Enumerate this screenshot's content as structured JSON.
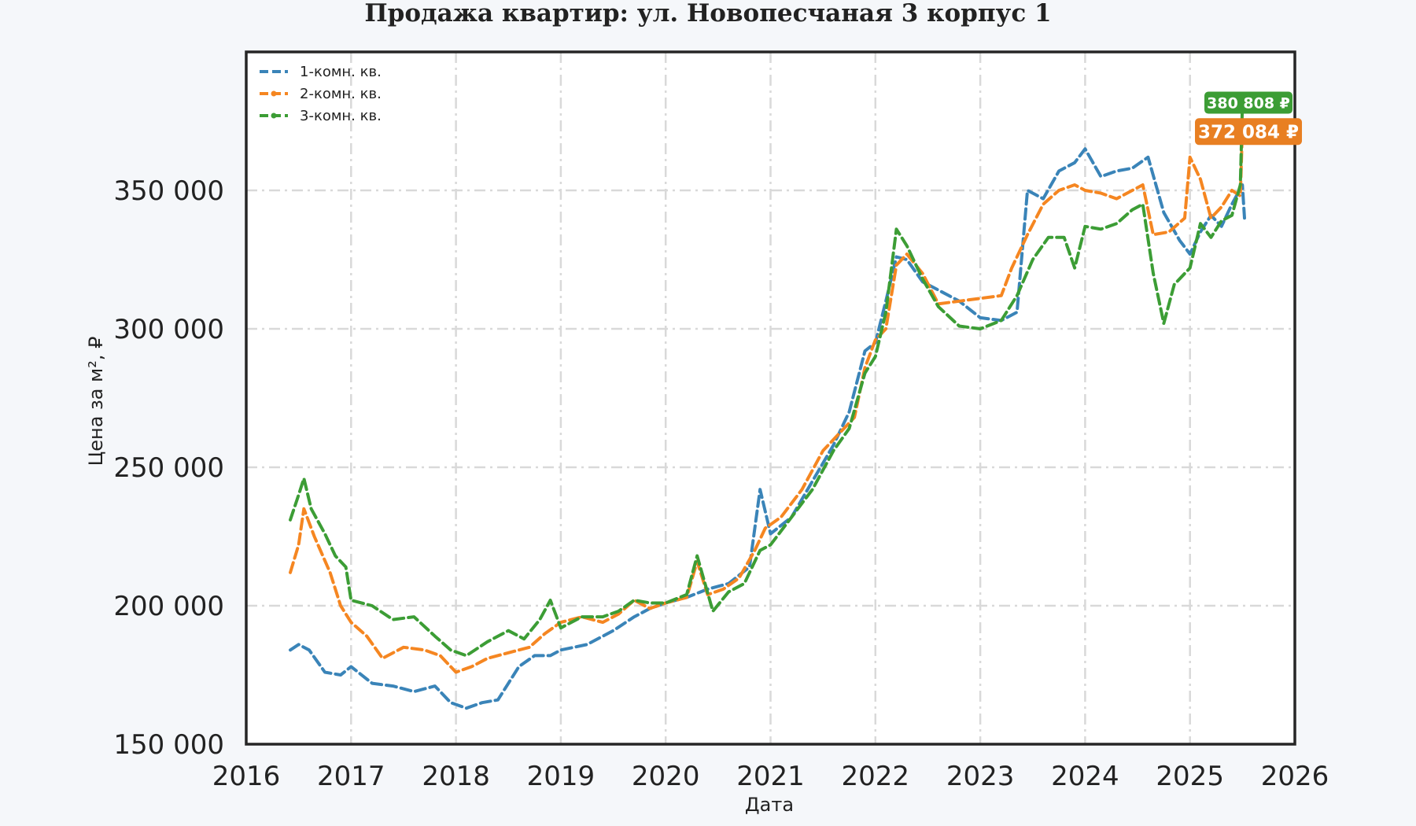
{
  "chart_data": {
    "type": "line",
    "title": "Продажа квартир: ул. Новопесчаная 3 корпус 1",
    "xlabel": "Дата",
    "ylabel": "Цена за м², ₽",
    "xlim": [
      2016,
      2026
    ],
    "ylim": [
      150000,
      400000
    ],
    "x_ticks": [
      2016,
      2017,
      2018,
      2019,
      2020,
      2021,
      2022,
      2023,
      2024,
      2025,
      2026
    ],
    "y_ticks": [
      150000,
      200000,
      250000,
      300000,
      350000
    ],
    "x_tick_labels": [
      "2016",
      "2017",
      "2018",
      "2019",
      "2020",
      "2021",
      "2022",
      "2023",
      "2024",
      "2025",
      "2026"
    ],
    "y_tick_labels": [
      "150 000",
      "200 000",
      "250 000",
      "300 000",
      "350 000"
    ],
    "grid": true,
    "legend_position": "top-left",
    "series": [
      {
        "name": "1-комн. кв.",
        "color": "#3a84b8",
        "x": [
          2016.42,
          2016.5,
          2016.6,
          2016.75,
          2016.9,
          2017.0,
          2017.2,
          2017.4,
          2017.6,
          2017.8,
          2017.95,
          2018.1,
          2018.25,
          2018.4,
          2018.5,
          2018.6,
          2018.75,
          2018.9,
          2019.0,
          2019.25,
          2019.5,
          2019.7,
          2019.85,
          2020.0,
          2020.2,
          2020.4,
          2020.6,
          2020.8,
          2020.9,
          2021.0,
          2021.2,
          2021.4,
          2021.6,
          2021.75,
          2021.9,
          2022.0,
          2022.1,
          2022.2,
          2022.3,
          2022.45,
          2022.6,
          2022.8,
          2023.0,
          2023.2,
          2023.35,
          2023.45,
          2023.6,
          2023.75,
          2023.9,
          2024.0,
          2024.15,
          2024.3,
          2024.45,
          2024.6,
          2024.75,
          2024.9,
          2025.0,
          2025.1,
          2025.2,
          2025.3,
          2025.4,
          2025.5,
          2025.52
        ],
        "values": [
          184000,
          186000,
          184000,
          176000,
          175000,
          178000,
          172000,
          171000,
          169000,
          171000,
          165000,
          163000,
          165000,
          166000,
          172000,
          178000,
          182000,
          182000,
          184000,
          186000,
          191000,
          196000,
          199000,
          201000,
          203000,
          206000,
          208000,
          214000,
          242000,
          226000,
          232000,
          245000,
          258000,
          270000,
          292000,
          295000,
          310000,
          326000,
          325000,
          317000,
          314000,
          310000,
          304000,
          303000,
          306000,
          350000,
          347000,
          357000,
          360000,
          365000,
          355000,
          357000,
          358000,
          362000,
          342000,
          332000,
          327000,
          335000,
          341000,
          337000,
          345000,
          352000,
          340000
        ]
      },
      {
        "name": "2-комн. кв.",
        "color": "#f58621",
        "x": [
          2016.42,
          2016.5,
          2016.55,
          2016.65,
          2016.8,
          2016.9,
          2017.0,
          2017.15,
          2017.3,
          2017.5,
          2017.7,
          2017.85,
          2018.0,
          2018.15,
          2018.3,
          2018.5,
          2018.7,
          2018.85,
          2019.0,
          2019.2,
          2019.4,
          2019.55,
          2019.7,
          2019.85,
          2020.0,
          2020.2,
          2020.3,
          2020.4,
          2020.55,
          2020.7,
          2020.85,
          2020.95,
          2021.1,
          2021.3,
          2021.5,
          2021.65,
          2021.8,
          2021.9,
          2022.0,
          2022.1,
          2022.2,
          2022.3,
          2022.45,
          2022.6,
          2022.8,
          2023.0,
          2023.2,
          2023.3,
          2023.45,
          2023.6,
          2023.75,
          2023.9,
          2024.0,
          2024.15,
          2024.3,
          2024.45,
          2024.55,
          2024.65,
          2024.8,
          2024.95,
          2025.0,
          2025.1,
          2025.2,
          2025.3,
          2025.4,
          2025.48,
          2025.5,
          2025.52
        ],
        "values": [
          212000,
          222000,
          235000,
          225000,
          212000,
          200000,
          194000,
          189000,
          181000,
          185000,
          184000,
          182000,
          176000,
          178000,
          181000,
          183000,
          185000,
          190000,
          194000,
          196000,
          194000,
          197000,
          202000,
          199000,
          201000,
          203000,
          216000,
          204000,
          206000,
          210000,
          220000,
          228000,
          232000,
          242000,
          256000,
          262000,
          268000,
          286000,
          296000,
          300000,
          323000,
          327000,
          320000,
          309000,
          310000,
          311000,
          312000,
          322000,
          334000,
          345000,
          350000,
          352000,
          350000,
          349000,
          347000,
          350000,
          352000,
          334000,
          335000,
          340000,
          362000,
          354000,
          340000,
          344000,
          350000,
          348000,
          372084,
          372084
        ]
      },
      {
        "name": "3-комн. кв.",
        "color": "#3c9d35",
        "x": [
          2016.42,
          2016.5,
          2016.55,
          2016.62,
          2016.75,
          2016.85,
          2016.95,
          2017.0,
          2017.2,
          2017.4,
          2017.6,
          2017.8,
          2017.95,
          2018.1,
          2018.3,
          2018.5,
          2018.65,
          2018.8,
          2018.9,
          2019.0,
          2019.2,
          2019.4,
          2019.55,
          2019.7,
          2019.85,
          2020.0,
          2020.2,
          2020.3,
          2020.45,
          2020.6,
          2020.75,
          2020.9,
          2021.0,
          2021.2,
          2021.4,
          2021.6,
          2021.75,
          2021.9,
          2022.0,
          2022.1,
          2022.2,
          2022.3,
          2022.45,
          2022.6,
          2022.8,
          2023.0,
          2023.2,
          2023.35,
          2023.5,
          2023.65,
          2023.8,
          2023.9,
          2024.0,
          2024.15,
          2024.3,
          2024.45,
          2024.55,
          2024.65,
          2024.75,
          2024.85,
          2025.0,
          2025.1,
          2025.2,
          2025.3,
          2025.4,
          2025.48,
          2025.5,
          2025.52
        ],
        "values": [
          231000,
          240000,
          246000,
          235000,
          226000,
          218000,
          214000,
          202000,
          200000,
          195000,
          196000,
          189000,
          184000,
          182000,
          187000,
          191000,
          188000,
          195000,
          202000,
          192000,
          196000,
          196000,
          198000,
          202000,
          201000,
          201000,
          204000,
          218000,
          198000,
          205000,
          208000,
          220000,
          222000,
          232000,
          242000,
          256000,
          264000,
          284000,
          290000,
          306000,
          336000,
          330000,
          318000,
          308000,
          301000,
          300000,
          303000,
          312000,
          325000,
          333000,
          333000,
          322000,
          337000,
          336000,
          338000,
          343000,
          345000,
          320000,
          302000,
          316000,
          322000,
          338000,
          333000,
          339000,
          341000,
          352000,
          380808,
          380808
        ]
      }
    ],
    "annotations": [
      {
        "text": "380 808 ₽",
        "series": "3-комн. кв.",
        "value": 380808,
        "color": "#3c9d35"
      },
      {
        "text": "372 084 ₽",
        "series": "2-комн. кв.",
        "value": 372084,
        "color": "#e87f22"
      }
    ]
  }
}
